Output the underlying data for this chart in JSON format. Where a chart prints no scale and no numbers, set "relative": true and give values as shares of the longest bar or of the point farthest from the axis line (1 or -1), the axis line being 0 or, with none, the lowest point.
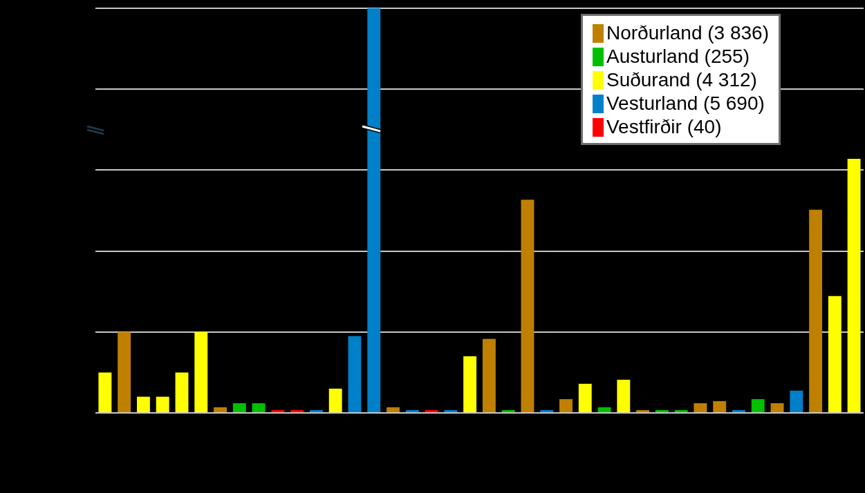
{
  "chart_data": {
    "type": "bar",
    "relative": true,
    "stacked": true,
    "grid": "y",
    "legend": "top right",
    "categories": [
      null,
      null,
      null,
      null,
      null,
      null,
      null,
      null,
      null,
      null,
      null,
      null,
      null,
      null,
      null,
      null,
      null,
      null,
      null,
      null,
      null,
      null,
      null,
      null,
      null,
      null,
      null,
      null,
      null,
      null,
      null,
      null,
      null,
      null,
      null,
      null,
      null,
      null,
      null,
      null
    ],
    "series": [
      {
        "name": "Norðurland (3 836)",
        "color": "#bf8000",
        "values": [
          null,
          0.2,
          null,
          null,
          null,
          null,
          0.014,
          null,
          null,
          null,
          null,
          null,
          null,
          null,
          null,
          0.014,
          null,
          null,
          null,
          null,
          0.183,
          null,
          0.527,
          null,
          0.034,
          null,
          null,
          null,
          0.007,
          null,
          null,
          0.024,
          0.029,
          null,
          null,
          0.024,
          null,
          0.502,
          null,
          null
        ]
      },
      {
        "name": "Austurland (255)",
        "color": "#00c000",
        "values": [
          null,
          null,
          null,
          null,
          null,
          null,
          null,
          0.024,
          0.024,
          null,
          null,
          null,
          null,
          null,
          null,
          null,
          null,
          null,
          null,
          null,
          null,
          0.007,
          null,
          null,
          null,
          null,
          0.014,
          null,
          null,
          0.007,
          0.007,
          null,
          null,
          null,
          0.034,
          null,
          null,
          null,
          null,
          null
        ]
      },
      {
        "name": "Suðurand (4 312)",
        "color": "#ffff00",
        "values": [
          0.1,
          null,
          0.04,
          0.04,
          0.1,
          0.2,
          null,
          null,
          null,
          null,
          null,
          null,
          0.06,
          null,
          null,
          null,
          null,
          null,
          null,
          0.14,
          null,
          null,
          null,
          null,
          null,
          0.072,
          null,
          0.082,
          null,
          null,
          null,
          null,
          null,
          null,
          null,
          null,
          null,
          null,
          0.289,
          0.628
        ]
      },
      {
        "name": "Vesturland (5 690)",
        "color": "#0080c8",
        "values": [
          null,
          null,
          null,
          null,
          null,
          null,
          null,
          null,
          null,
          null,
          null,
          0.007,
          null,
          0.19,
          1,
          null,
          0.007,
          null,
          0.007,
          null,
          null,
          null,
          null,
          0.007,
          null,
          null,
          null,
          null,
          null,
          null,
          null,
          null,
          null,
          0.007,
          null,
          null,
          0.055,
          null,
          null,
          null
        ]
      },
      {
        "name": "Vestfirðir (40)",
        "color": "#ff0000",
        "values": [
          null,
          null,
          null,
          null,
          null,
          null,
          null,
          null,
          null,
          0.007,
          0.007,
          null,
          null,
          null,
          null,
          null,
          null,
          0.007,
          null,
          null,
          null,
          null,
          null,
          null,
          null,
          null,
          null,
          null,
          null,
          null,
          null,
          null,
          null,
          null,
          null,
          null,
          null,
          null,
          null,
          null
        ]
      }
    ]
  }
}
